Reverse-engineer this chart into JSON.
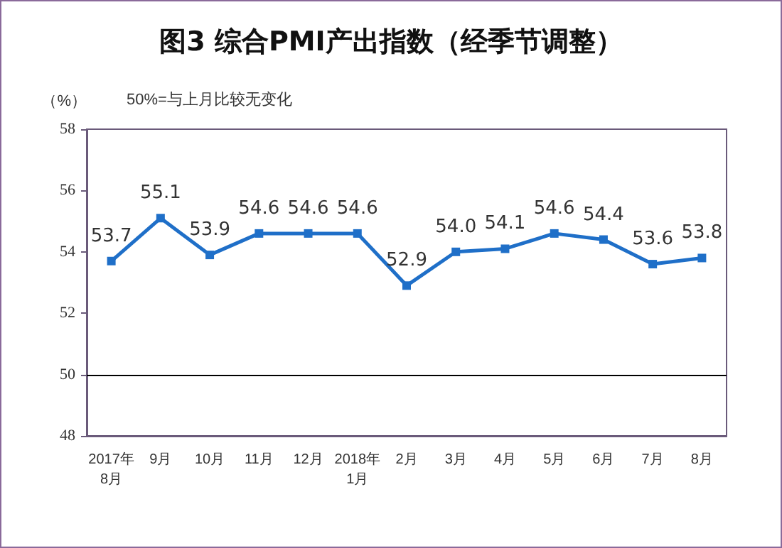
{
  "chart_data": {
    "type": "line",
    "title": "图3 综合PMI产出指数（经季节调整）",
    "ylabel": "（%）",
    "annotations": [
      "50%=与上月比较无变化"
    ],
    "categories": [
      "2017年\n8月",
      "9月",
      "10月",
      "11月",
      "12月",
      "2018年\n1月",
      "2月",
      "3月",
      "4月",
      "5月",
      "6月",
      "7月",
      "8月"
    ],
    "series": [
      {
        "color": "#1f6fc8",
        "values": [
          53.7,
          55.1,
          53.9,
          54.6,
          54.6,
          54.6,
          52.9,
          54.0,
          54.1,
          54.6,
          54.4,
          53.6,
          53.8
        ],
        "value_labels": [
          "53.7",
          "55.1",
          "53.9",
          "54.6",
          "54.6",
          "54.6",
          "52.9",
          "54.0",
          "54.1",
          "54.6",
          "54.4",
          "53.6",
          "53.8"
        ]
      }
    ],
    "ylim": [
      48,
      58
    ],
    "yticks": [
      48,
      50,
      52,
      54,
      56,
      58
    ],
    "grid": false,
    "marker": "square",
    "line_style": "solid",
    "ref_lines": [
      {
        "axis": "y",
        "value": 50,
        "color": "#000000"
      }
    ]
  }
}
